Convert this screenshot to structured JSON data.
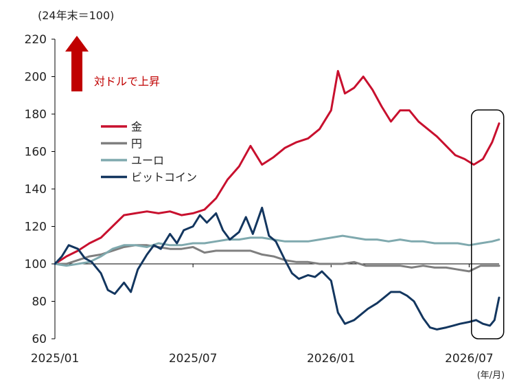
{
  "chart_data": {
    "type": "line",
    "unit_label": "(24年末＝100)",
    "x_unit_label": "(年/月)",
    "annotation": "対ドルで上昇",
    "ylim": [
      60,
      220
    ],
    "y_ticks": [
      60,
      80,
      100,
      120,
      140,
      160,
      180,
      200,
      220
    ],
    "x_ticks": [
      "2025/01",
      "2025/07",
      "2026/01",
      "2026/07"
    ],
    "x_tick_positions": [
      0,
      6,
      12,
      18
    ],
    "xlim": [
      0,
      19.3
    ],
    "grid": false,
    "legend_position": "center-left",
    "highlight_box": {
      "x_range": [
        18.1,
        19.5
      ],
      "label": ""
    },
    "series": [
      {
        "name": "金",
        "color": "#c8102e",
        "x": [
          0,
          0.5,
          1,
          1.5,
          2,
          2.5,
          3,
          3.5,
          4,
          4.5,
          5,
          5.5,
          6,
          6.5,
          7,
          7.5,
          8,
          8.5,
          9,
          9.5,
          10,
          10.5,
          11,
          11.5,
          12,
          12.3,
          12.6,
          13,
          13.4,
          13.8,
          14.2,
          14.6,
          15,
          15.4,
          15.8,
          16.2,
          16.6,
          17,
          17.4,
          17.8,
          18.2,
          18.6,
          19.0,
          19.3
        ],
        "values": [
          100,
          104,
          107,
          111,
          114,
          120,
          126,
          127,
          128,
          127,
          128,
          126,
          127,
          129,
          135,
          145,
          152,
          163,
          153,
          157,
          162,
          165,
          167,
          172,
          182,
          203,
          191,
          194,
          200,
          193,
          184,
          176,
          182,
          182,
          176,
          172,
          168,
          163,
          158,
          156,
          153,
          156,
          165,
          175
        ]
      },
      {
        "name": "円",
        "color": "#7f7f7f",
        "x": [
          0,
          0.5,
          1,
          1.5,
          2,
          2.5,
          3,
          3.5,
          4,
          4.5,
          5,
          5.5,
          6,
          6.5,
          7,
          7.5,
          8,
          8.5,
          9,
          9.5,
          10,
          10.5,
          11,
          11.5,
          12,
          12.5,
          13,
          13.5,
          14,
          14.5,
          15,
          15.5,
          16,
          16.5,
          17,
          17.5,
          18,
          18.5,
          19,
          19.3
        ],
        "values": [
          100,
          100,
          102,
          104,
          105,
          107,
          109,
          110,
          110,
          109,
          108,
          108,
          109,
          106,
          107,
          107,
          107,
          107,
          105,
          104,
          102,
          101,
          101,
          100,
          100,
          100,
          101,
          99,
          99,
          99,
          99,
          98,
          99,
          98,
          98,
          97,
          96,
          99,
          99,
          99
        ]
      },
      {
        "name": "ユーロ",
        "color": "#7fa9ae",
        "x": [
          0,
          0.5,
          1,
          1.5,
          2,
          2.5,
          3,
          3.5,
          4,
          4.5,
          5,
          5.5,
          6,
          6.5,
          7,
          7.5,
          8,
          8.5,
          9,
          9.5,
          10,
          10.5,
          11,
          11.5,
          12,
          12.5,
          13,
          13.5,
          14,
          14.5,
          15,
          15.5,
          16,
          16.5,
          17,
          17.5,
          18,
          18.5,
          19,
          19.3
        ],
        "values": [
          100,
          99,
          100,
          101,
          104,
          108,
          110,
          110,
          109,
          111,
          110,
          110,
          111,
          111,
          112,
          113,
          113,
          114,
          114,
          113,
          112,
          112,
          112,
          113,
          114,
          115,
          114,
          113,
          113,
          112,
          113,
          112,
          112,
          111,
          111,
          111,
          110,
          111,
          112,
          113
        ]
      },
      {
        "name": "ビットコイン",
        "color": "#13365f",
        "x": [
          0,
          0.3,
          0.6,
          1,
          1.3,
          1.6,
          2,
          2.3,
          2.6,
          3,
          3.3,
          3.6,
          4,
          4.3,
          4.6,
          5,
          5.3,
          5.6,
          6,
          6.3,
          6.6,
          7,
          7.3,
          7.6,
          8,
          8.3,
          8.6,
          9,
          9.3,
          9.6,
          10,
          10.3,
          10.6,
          11,
          11.3,
          11.6,
          12,
          12.3,
          12.6,
          13,
          13.3,
          13.6,
          14,
          14.3,
          14.6,
          15,
          15.3,
          15.6,
          16,
          16.3,
          16.6,
          17,
          17.3,
          17.6,
          18,
          18.3,
          18.6,
          18.9,
          19.1,
          19.3
        ],
        "values": [
          100,
          104,
          110,
          108,
          103,
          101,
          95,
          86,
          84,
          90,
          85,
          97,
          105,
          110,
          108,
          116,
          111,
          118,
          120,
          126,
          122,
          127,
          118,
          113,
          117,
          125,
          116,
          130,
          115,
          112,
          102,
          95,
          92,
          94,
          93,
          96,
          91,
          74,
          68,
          70,
          73,
          76,
          79,
          82,
          85,
          85,
          83,
          80,
          71,
          66,
          65,
          66,
          67,
          68,
          69,
          70,
          68,
          67,
          70,
          82
        ]
      }
    ]
  }
}
